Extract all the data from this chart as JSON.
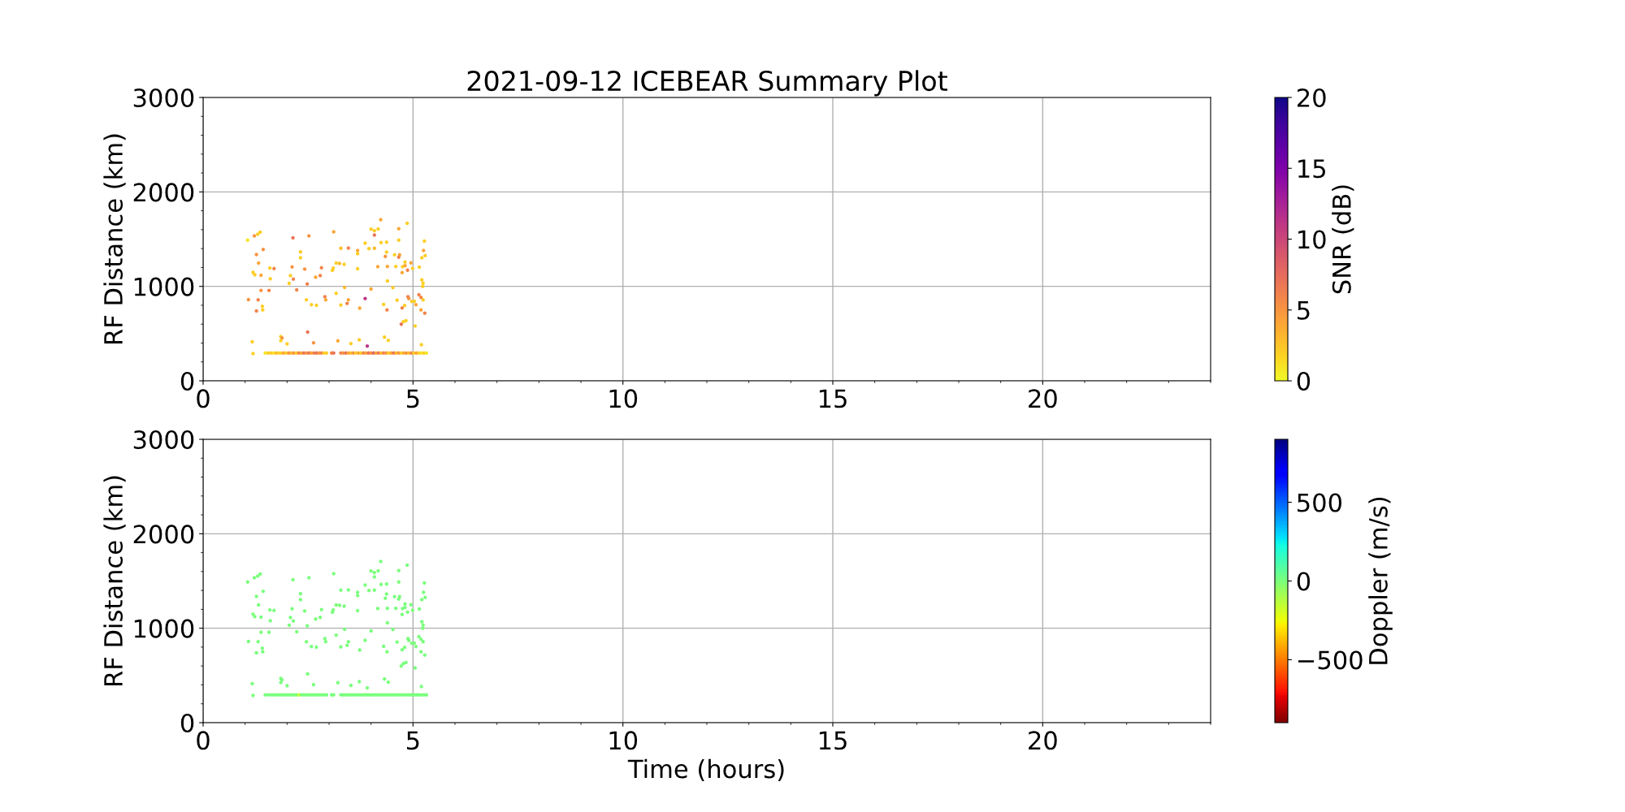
{
  "chart_data": [
    {
      "type": "scatter",
      "title": "2021-09-12 ICEBEAR Summary Plot",
      "ylabel": "RF Distance (km)",
      "clabel": "SNR (dB)",
      "marker": "circle",
      "grid": true,
      "xlim": [
        0,
        24
      ],
      "xticks": [
        0,
        5,
        10,
        15,
        20
      ],
      "ylim": [
        0,
        3000
      ],
      "yticks": [
        0,
        1000,
        2000,
        3000
      ],
      "clim": [
        0,
        20
      ],
      "cticks": [
        0,
        5,
        10,
        15,
        20
      ],
      "x": [
        1.06,
        1.22,
        1.3,
        1.36,
        2.14,
        2.52,
        3.11,
        4.23,
        4.86,
        4.0,
        4.08,
        4.17,
        4.08,
        4.66,
        4.66,
        3.86,
        4.24,
        4.37,
        1.27,
        1.43,
        1.32,
        2.32,
        2.32,
        3.28,
        3.46,
        3.68,
        3.68,
        3.95,
        4.08,
        5.27,
        5.25,
        5.29,
        5.21,
        4.34,
        4.37,
        4.56,
        4.68,
        4.66,
        4.81,
        4.95,
        3.17,
        3.25,
        3.36,
        1.59,
        1.69,
        2.12,
        2.42,
        2.82,
        3.1,
        3.08,
        3.68,
        4.16,
        4.39,
        4.59,
        4.75,
        4.81,
        4.87,
        4.74,
        4.99,
        5.15,
        1.19,
        1.23,
        1.38,
        2.08,
        2.15,
        2.68,
        2.79,
        1.6,
        2.05,
        2.48,
        4.39,
        5.21,
        5.24,
        5.23,
        1.38,
        1.57,
        2.23,
        3.37,
        4.0,
        4.52,
        1.08,
        1.31,
        1.27,
        1.41,
        1.42,
        2.46,
        2.58,
        2.7,
        2.9,
        2.92,
        3.17,
        3.46,
        3.43,
        3.28,
        3.86,
        3.73,
        4.3,
        4.38,
        4.62,
        4.88,
        4.9,
        4.8,
        4.74,
        4.97,
        5.03,
        5.07,
        5.14,
        5.19,
        5.24,
        5.19,
        5.28,
        4.72,
        4.77,
        4.83,
        5.05,
        2.49,
        1.17,
        1.85,
        1.88,
        1.85,
        2.0,
        2.63,
        3.21,
        3.52,
        3.72,
        3.91,
        4.32,
        4.41,
        5.2,
        1.19,
        1.48,
        1.55,
        1.62,
        1.68,
        1.74,
        1.8,
        1.86,
        1.92,
        1.98,
        2.04,
        2.1,
        2.16,
        2.22,
        2.28,
        2.34,
        2.4,
        2.46,
        2.52,
        2.58,
        2.64,
        2.7,
        2.76,
        2.82,
        2.88,
        2.94,
        3.06,
        3.11,
        3.28,
        3.34,
        3.4,
        3.46,
        3.52,
        3.58,
        3.64,
        3.7,
        3.76,
        3.82,
        3.88,
        3.94,
        4.0,
        4.06,
        4.12,
        4.18,
        4.24,
        4.3,
        4.36,
        4.42,
        4.48,
        4.54,
        4.6,
        4.66,
        4.72,
        4.78,
        4.84,
        4.9,
        4.96,
        5.02,
        5.08,
        5.14,
        5.2,
        5.26,
        5.32
      ],
      "values": [
        1489,
        1534,
        1551,
        1574,
        1514,
        1534,
        1577,
        1706,
        1668,
        1606,
        1589,
        1608,
        1543,
        1611,
        1489,
        1457,
        1463,
        1468,
        1337,
        1391,
        1246,
        1366,
        1303,
        1403,
        1406,
        1380,
        1346,
        1400,
        1403,
        1480,
        1380,
        1326,
        1303,
        1317,
        1363,
        1334,
        1334,
        1309,
        1257,
        1249,
        1246,
        1243,
        1234,
        1194,
        1189,
        1206,
        1183,
        1197,
        1194,
        1169,
        1186,
        1209,
        1211,
        1211,
        1209,
        1220,
        1171,
        1146,
        1191,
        1203,
        1149,
        1123,
        1117,
        1114,
        1077,
        1097,
        1114,
        1080,
        1031,
        1026,
        1057,
        1069,
        1034,
        1000,
        957,
        957,
        963,
        989,
        971,
        986,
        860,
        857,
        740,
        789,
        751,
        857,
        806,
        800,
        891,
        857,
        926,
        857,
        820,
        803,
        871,
        769,
        809,
        751,
        854,
        891,
        871,
        797,
        771,
        840,
        843,
        806,
        911,
        883,
        857,
        751,
        717,
        600,
        626,
        637,
        580,
        517,
        414,
        469,
        454,
        426,
        391,
        403,
        423,
        394,
        434,
        369,
        463,
        429,
        383,
        289,
        295,
        295,
        295,
        295,
        295,
        295,
        295,
        295,
        295,
        295,
        295,
        295,
        295,
        295,
        295,
        295,
        295,
        295,
        295,
        295,
        295,
        295,
        295,
        295,
        295,
        295,
        295,
        295,
        295,
        295,
        295,
        295,
        295,
        295,
        295,
        295,
        295,
        295,
        295,
        295,
        295,
        295,
        295,
        295,
        295,
        295,
        295,
        295,
        295,
        295,
        295,
        295,
        295,
        295,
        295,
        295,
        295,
        295,
        295,
        295,
        295,
        295
      ],
      "cvalues": [
        1,
        5,
        2,
        2,
        7,
        5,
        4,
        4,
        2,
        2,
        2,
        2,
        7,
        4,
        2,
        2,
        2,
        2,
        5,
        5,
        4,
        2,
        2,
        3,
        6,
        4,
        2,
        2,
        3,
        2,
        4,
        2,
        2,
        5,
        2,
        2,
        4,
        6,
        2,
        4,
        2,
        3,
        2,
        2,
        6,
        5,
        5,
        6,
        2,
        2,
        2,
        4,
        4,
        2,
        2,
        4,
        6,
        4,
        2,
        2,
        2,
        2,
        4,
        2,
        6,
        4,
        6,
        2,
        2,
        6,
        2,
        2,
        2,
        2,
        5,
        6,
        6,
        3,
        4,
        2,
        5,
        6,
        6,
        2,
        2,
        2,
        2,
        2,
        6,
        4,
        2,
        4,
        6,
        2,
        11,
        4,
        2,
        6,
        2,
        6,
        5,
        2,
        6,
        2,
        2,
        4,
        6,
        6,
        2,
        4,
        6,
        7,
        2,
        2,
        2,
        7,
        2,
        2,
        5,
        2,
        2,
        5,
        4,
        2,
        2,
        11,
        2,
        2,
        2,
        2,
        1,
        2,
        2,
        1,
        3,
        2,
        2,
        4,
        2,
        5,
        3,
        5,
        2,
        6,
        4,
        7,
        5,
        7,
        4,
        6,
        7,
        5,
        6,
        2,
        2,
        6,
        7,
        6,
        5,
        7,
        4,
        3,
        5,
        2,
        4,
        2,
        6,
        4,
        7,
        5,
        8,
        4,
        7,
        3,
        6,
        5,
        2,
        4,
        7,
        3,
        5,
        2,
        4,
        5,
        3,
        6,
        2,
        4,
        2,
        1,
        2,
        1
      ]
    },
    {
      "type": "scatter",
      "xlabel": "Time (hours)",
      "ylabel": "RF Distance (km)",
      "clabel": "Doppler (m/s)",
      "marker": "circle",
      "grid": true,
      "xlim": [
        0,
        24
      ],
      "xticks": [
        0,
        5,
        10,
        15,
        20
      ],
      "ylim": [
        0,
        3000
      ],
      "yticks": [
        0,
        1000,
        2000,
        3000
      ],
      "clim": [
        -900,
        900
      ],
      "cticks": [
        {
          "value": -500,
          "label": "−500"
        },
        0,
        500
      ],
      "x": [
        1.06,
        1.22,
        1.3,
        1.36,
        2.14,
        2.52,
        3.11,
        4.23,
        4.86,
        4.0,
        4.08,
        4.17,
        4.08,
        4.66,
        4.66,
        3.86,
        4.24,
        4.37,
        1.27,
        1.43,
        1.32,
        2.32,
        2.32,
        3.28,
        3.46,
        3.68,
        3.68,
        3.95,
        4.08,
        5.27,
        5.25,
        5.29,
        5.21,
        4.34,
        4.37,
        4.56,
        4.68,
        4.66,
        4.81,
        4.95,
        3.17,
        3.25,
        3.36,
        1.59,
        1.69,
        2.12,
        2.42,
        2.82,
        3.1,
        3.08,
        3.68,
        4.16,
        4.39,
        4.59,
        4.75,
        4.81,
        4.87,
        4.74,
        4.99,
        5.15,
        1.19,
        1.23,
        1.38,
        2.08,
        2.15,
        2.68,
        2.79,
        1.6,
        2.05,
        2.48,
        4.39,
        5.21,
        5.24,
        5.23,
        1.38,
        1.57,
        2.23,
        3.37,
        4.0,
        4.52,
        1.08,
        1.31,
        1.27,
        1.41,
        1.42,
        2.46,
        2.58,
        2.7,
        2.9,
        2.92,
        3.17,
        3.46,
        3.43,
        3.28,
        3.86,
        3.73,
        4.3,
        4.38,
        4.62,
        4.88,
        4.9,
        4.8,
        4.74,
        4.97,
        5.03,
        5.07,
        5.14,
        5.19,
        5.24,
        5.19,
        5.28,
        4.72,
        4.77,
        4.83,
        5.05,
        2.49,
        1.17,
        1.85,
        1.88,
        1.85,
        2.0,
        2.63,
        3.21,
        3.52,
        3.72,
        3.91,
        4.32,
        4.41,
        5.2,
        1.19,
        1.48,
        1.55,
        1.62,
        1.68,
        1.74,
        1.8,
        1.86,
        1.92,
        1.98,
        2.04,
        2.1,
        2.16,
        2.22,
        2.28,
        2.34,
        2.4,
        2.46,
        2.52,
        2.58,
        2.64,
        2.7,
        2.76,
        2.82,
        2.88,
        2.94,
        3.06,
        3.11,
        3.28,
        3.34,
        3.4,
        3.46,
        3.52,
        3.58,
        3.64,
        3.7,
        3.76,
        3.82,
        3.88,
        3.94,
        4.0,
        4.06,
        4.12,
        4.18,
        4.24,
        4.3,
        4.36,
        4.42,
        4.48,
        4.54,
        4.6,
        4.66,
        4.72,
        4.78,
        4.84,
        4.9,
        4.96,
        5.02,
        5.08,
        5.14,
        5.2,
        5.26,
        5.32
      ],
      "values": [
        1489,
        1534,
        1551,
        1574,
        1514,
        1534,
        1577,
        1706,
        1668,
        1606,
        1589,
        1608,
        1543,
        1611,
        1489,
        1457,
        1463,
        1468,
        1337,
        1391,
        1246,
        1366,
        1303,
        1403,
        1406,
        1380,
        1346,
        1400,
        1403,
        1480,
        1380,
        1326,
        1303,
        1317,
        1363,
        1334,
        1334,
        1309,
        1257,
        1249,
        1246,
        1243,
        1234,
        1194,
        1189,
        1206,
        1183,
        1197,
        1194,
        1169,
        1186,
        1209,
        1211,
        1211,
        1209,
        1220,
        1171,
        1146,
        1191,
        1203,
        1149,
        1123,
        1117,
        1114,
        1077,
        1097,
        1114,
        1080,
        1031,
        1026,
        1057,
        1069,
        1034,
        1000,
        957,
        957,
        963,
        989,
        971,
        986,
        860,
        857,
        740,
        789,
        751,
        857,
        806,
        800,
        891,
        857,
        926,
        857,
        820,
        803,
        871,
        769,
        809,
        751,
        854,
        891,
        871,
        797,
        771,
        840,
        843,
        806,
        911,
        883,
        857,
        751,
        717,
        600,
        626,
        637,
        580,
        517,
        414,
        469,
        454,
        426,
        391,
        403,
        423,
        394,
        434,
        369,
        463,
        429,
        383,
        289,
        295,
        295,
        295,
        295,
        295,
        295,
        295,
        295,
        295,
        295,
        295,
        295,
        295,
        295,
        295,
        295,
        295,
        295,
        295,
        295,
        295,
        295,
        295,
        295,
        295,
        295,
        295,
        295,
        295,
        295,
        295,
        295,
        295,
        295,
        295,
        295,
        295,
        295,
        295,
        295,
        295,
        295,
        295,
        295,
        295,
        295,
        295,
        295,
        295,
        295,
        295,
        295,
        295,
        295,
        295,
        295,
        295,
        295,
        295,
        295,
        295,
        295
      ],
      "cvalues": [
        0,
        0,
        0,
        0,
        0,
        0,
        0,
        0,
        0,
        0,
        0,
        0,
        0,
        0,
        0,
        0,
        0,
        0,
        0,
        0,
        0,
        0,
        0,
        0,
        0,
        0,
        0,
        0,
        0,
        0,
        0,
        0,
        0,
        0,
        0,
        0,
        0,
        0,
        0,
        0,
        0,
        0,
        0,
        0,
        0,
        0,
        0,
        0,
        0,
        0,
        0,
        0,
        0,
        0,
        0,
        0,
        0,
        0,
        0,
        0,
        0,
        0,
        0,
        0,
        0,
        0,
        0,
        0,
        0,
        0,
        0,
        0,
        0,
        0,
        0,
        0,
        0,
        0,
        0,
        0,
        0,
        0,
        0,
        0,
        0,
        0,
        0,
        0,
        0,
        0,
        0,
        0,
        0,
        0,
        0,
        0,
        0,
        0,
        0,
        0,
        0,
        0,
        0,
        0,
        0,
        0,
        0,
        0,
        0,
        0,
        0,
        0,
        0,
        0,
        0,
        0,
        0,
        0,
        0,
        0,
        0,
        0,
        0,
        0,
        0,
        0,
        0,
        0,
        0,
        0,
        0,
        0,
        0,
        0,
        0,
        0,
        0,
        0,
        0,
        0,
        0,
        0,
        0,
        -150,
        0,
        0,
        0,
        0,
        0,
        0,
        0,
        0,
        0,
        0,
        0,
        0,
        0,
        0,
        0,
        0,
        0,
        0,
        0,
        0,
        0,
        0,
        0,
        0,
        0,
        0,
        0,
        0,
        0,
        0,
        0,
        0,
        0,
        0,
        0,
        0,
        0,
        0,
        0,
        0,
        0,
        0,
        0,
        0,
        0,
        0,
        0,
        0
      ]
    }
  ]
}
